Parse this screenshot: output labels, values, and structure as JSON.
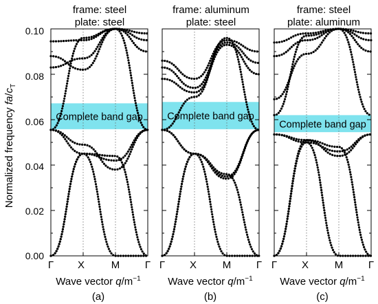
{
  "y_axis": {
    "label_main": "Normalized frequency ",
    "label_italic": "fa",
    "label_slash": "/",
    "label_c": "c",
    "label_sub": "T",
    "ticks": [
      "0.00",
      "0.02",
      "0.04",
      "0.06",
      "0.08",
      "0.10"
    ]
  },
  "x_axis": {
    "label_main": "Wave vector ",
    "label_italic": "q",
    "label_unit": "/m",
    "label_exp": "−1"
  },
  "colors": {
    "gap": "#7fe3ee",
    "curve": "#000000",
    "frame": "#000000",
    "guide": "#666666"
  },
  "chart_data": [
    {
      "type": "line",
      "panel_label": "(a)",
      "title_line1": "frame: steel",
      "title_line2": "plate: steel",
      "band_gap_label": "Complete band gap",
      "band_gap": [
        0.0558,
        0.0672
      ],
      "x": [
        "Γ",
        "X",
        "M",
        "Γ"
      ],
      "ylim": [
        0,
        0.1
      ],
      "series": [
        {
          "values": [
            0.0,
            0.045,
            0.0,
            0.0
          ]
        },
        {
          "values": [
            0.0,
            0.045,
            0.044,
            0.0
          ]
        },
        {
          "values": [
            0.0555,
            0.045,
            0.042,
            0.0555
          ]
        },
        {
          "values": [
            0.0555,
            0.049,
            0.038,
            0.0555
          ]
        },
        {
          "values": [
            0.0555,
            0.096,
            0.1,
            0.0555
          ]
        },
        {
          "values": [
            0.083,
            0.087,
            0.1,
            0.09
          ]
        },
        {
          "values": [
            0.088,
            0.082,
            0.1,
            0.095
          ]
        },
        {
          "values": [
            0.0945,
            0.095,
            0.1,
            0.098
          ]
        }
      ]
    },
    {
      "type": "line",
      "panel_label": "(b)",
      "title_line1": "frame: aluminum",
      "title_line2": "plate: steel",
      "band_gap_label": "Complete band gap",
      "band_gap": [
        0.0558,
        0.0678
      ],
      "x": [
        "Γ",
        "X",
        "M",
        "Γ"
      ],
      "ylim": [
        0,
        0.1
      ],
      "series": [
        {
          "values": [
            0.0,
            0.045,
            0.0,
            0.0
          ]
        },
        {
          "values": [
            0.0,
            0.045,
            0.036,
            0.0
          ]
        },
        {
          "values": [
            0.0555,
            0.045,
            0.035,
            0.0555
          ]
        },
        {
          "values": [
            0.0555,
            0.045,
            0.034,
            0.0555
          ]
        },
        {
          "values": [
            0.0555,
            0.07,
            0.096,
            0.0555
          ]
        },
        {
          "values": [
            0.078,
            0.072,
            0.093,
            0.08
          ]
        },
        {
          "values": [
            0.083,
            0.074,
            0.094,
            0.085
          ]
        },
        {
          "values": [
            0.086,
            0.078,
            0.095,
            0.09
          ]
        }
      ]
    },
    {
      "type": "line",
      "panel_label": "(c)",
      "title_line1": "frame: steel",
      "title_line2": "plate: aluminum",
      "band_gap_label": "Complete band gap",
      "band_gap": [
        0.0545,
        0.062
      ],
      "x": [
        "Γ",
        "X",
        "M",
        "Γ"
      ],
      "ylim": [
        0,
        0.1
      ],
      "series": [
        {
          "values": [
            0.0,
            0.05,
            0.0,
            0.0
          ]
        },
        {
          "values": [
            0.0,
            0.051,
            0.048,
            0.0
          ]
        },
        {
          "values": [
            0.0535,
            0.051,
            0.044,
            0.0535
          ]
        },
        {
          "values": [
            0.0535,
            0.05,
            0.046,
            0.0535
          ]
        },
        {
          "values": [
            0.062,
            0.097,
            0.1,
            0.062
          ]
        },
        {
          "values": [
            0.069,
            0.089,
            0.1,
            0.09
          ]
        },
        {
          "values": [
            0.088,
            0.095,
            0.1,
            0.095
          ]
        },
        {
          "values": [
            0.094,
            0.098,
            0.1,
            0.098
          ]
        }
      ]
    }
  ]
}
